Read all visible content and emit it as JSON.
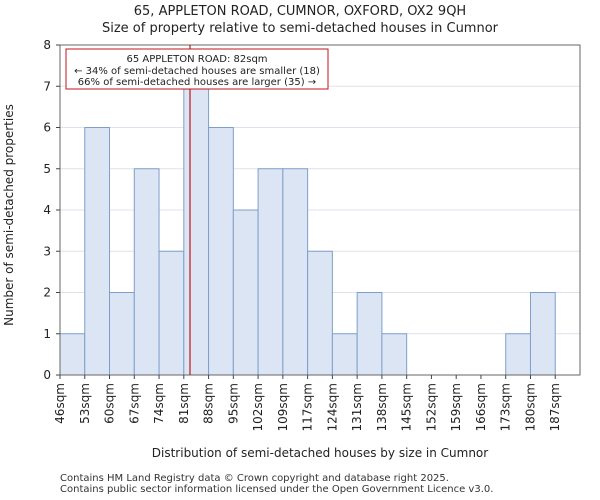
{
  "chart_data": {
    "type": "bar",
    "title": "65, APPLETON ROAD, CUMNOR, OXFORD, OX2 9QH",
    "subtitle": "Size of property relative to semi-detached houses in Cumnor",
    "xlabel": "Distribution of semi-detached houses by size in Cumnor",
    "ylabel": "Number of semi-detached properties",
    "categories": [
      "46sqm",
      "53sqm",
      "60sqm",
      "67sqm",
      "74sqm",
      "81sqm",
      "88sqm",
      "95sqm",
      "102sqm",
      "109sqm",
      "117sqm",
      "124sqm",
      "131sqm",
      "138sqm",
      "145sqm",
      "152sqm",
      "159sqm",
      "166sqm",
      "173sqm",
      "180sqm",
      "187sqm"
    ],
    "values": [
      1,
      6,
      2,
      5,
      3,
      7,
      6,
      4,
      5,
      5,
      3,
      1,
      2,
      1,
      0,
      0,
      0,
      0,
      1,
      2,
      0
    ],
    "ylim": [
      0,
      8
    ],
    "yticks": [
      0,
      1,
      2,
      3,
      4,
      5,
      6,
      7,
      8
    ],
    "marker": {
      "value_sqm": 82,
      "position_in_bins": 5.25
    },
    "annotation": {
      "line1": "65 APPLETON ROAD: 82sqm",
      "line2": "← 34% of semi-detached houses are smaller (18)",
      "line3": "66% of semi-detached houses are larger (35) →"
    },
    "colors": {
      "bar_fill": "#dbe5f4",
      "bar_edge": "#7f9fc9",
      "marker": "#c0141b",
      "grid": "#dde3ec"
    }
  },
  "footer": {
    "line1": "Contains HM Land Registry data © Crown copyright and database right 2025.",
    "line2": "Contains public sector information licensed under the Open Government Licence v3.0."
  }
}
